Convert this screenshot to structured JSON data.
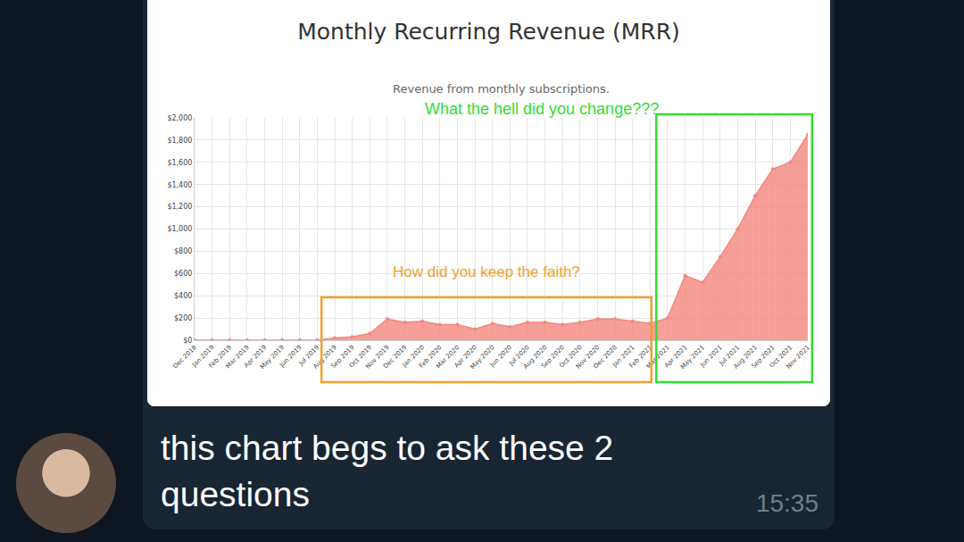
{
  "chart_data": {
    "type": "area",
    "title": "Monthly Recurring Revenue (MRR)",
    "subtitle": "Revenue from monthly subscriptions.",
    "categories": [
      "Dec 2018",
      "Jan 2019",
      "Feb 2019",
      "Mar 2019",
      "Apr 2019",
      "May 2019",
      "Jun 2019",
      "Jul 2019",
      "Aug 2019",
      "Sep 2019",
      "Oct 2019",
      "Nov 2019",
      "Dec 2019",
      "Jan 2020",
      "Feb 2020",
      "Mar 2020",
      "Apr 2020",
      "May 2020",
      "Jun 2020",
      "Jul 2020",
      "Aug 2020",
      "Sep 2020",
      "Oct 2020",
      "Nov 2020",
      "Dec 2020",
      "Jan 2021",
      "Feb 2021",
      "Mar 2021",
      "Apr 2021",
      "May 2021",
      "Jun 2021",
      "Jul 2021",
      "Aug 2021",
      "Sep 2021",
      "Oct 2021",
      "Nov 2021"
    ],
    "values": [
      0,
      0,
      0,
      0,
      0,
      0,
      0,
      0,
      20,
      30,
      60,
      190,
      160,
      170,
      140,
      140,
      100,
      150,
      120,
      160,
      160,
      140,
      160,
      190,
      190,
      170,
      150,
      200,
      580,
      520,
      750,
      1000,
      1300,
      1540,
      1600,
      1850
    ],
    "color": "#f4877f",
    "marker": "circle",
    "line_style": "solid",
    "ylim": [
      0,
      2000
    ],
    "yticks": [
      {
        "value": 0,
        "label": "$0"
      },
      {
        "value": 200,
        "label": "$200"
      },
      {
        "value": 400,
        "label": "$400"
      },
      {
        "value": 600,
        "label": "$600"
      },
      {
        "value": 800,
        "label": "$800"
      },
      {
        "value": 1000,
        "label": "$1,000"
      },
      {
        "value": 1200,
        "label": "$1,200"
      },
      {
        "value": 1400,
        "label": "$1,400"
      },
      {
        "value": 1600,
        "label": "$1,600"
      },
      {
        "value": 1800,
        "label": "$1,800"
      },
      {
        "value": 2000,
        "label": "$2,000"
      }
    ],
    "grid": true,
    "annotations": [
      {
        "text": "How did you keep the faith?",
        "color": "#f0a030"
      },
      {
        "text": "What the hell did you change???",
        "color": "#33dd33"
      }
    ]
  },
  "message": {
    "text": "this chart begs to ask these 2 questions",
    "time": "15:35"
  }
}
